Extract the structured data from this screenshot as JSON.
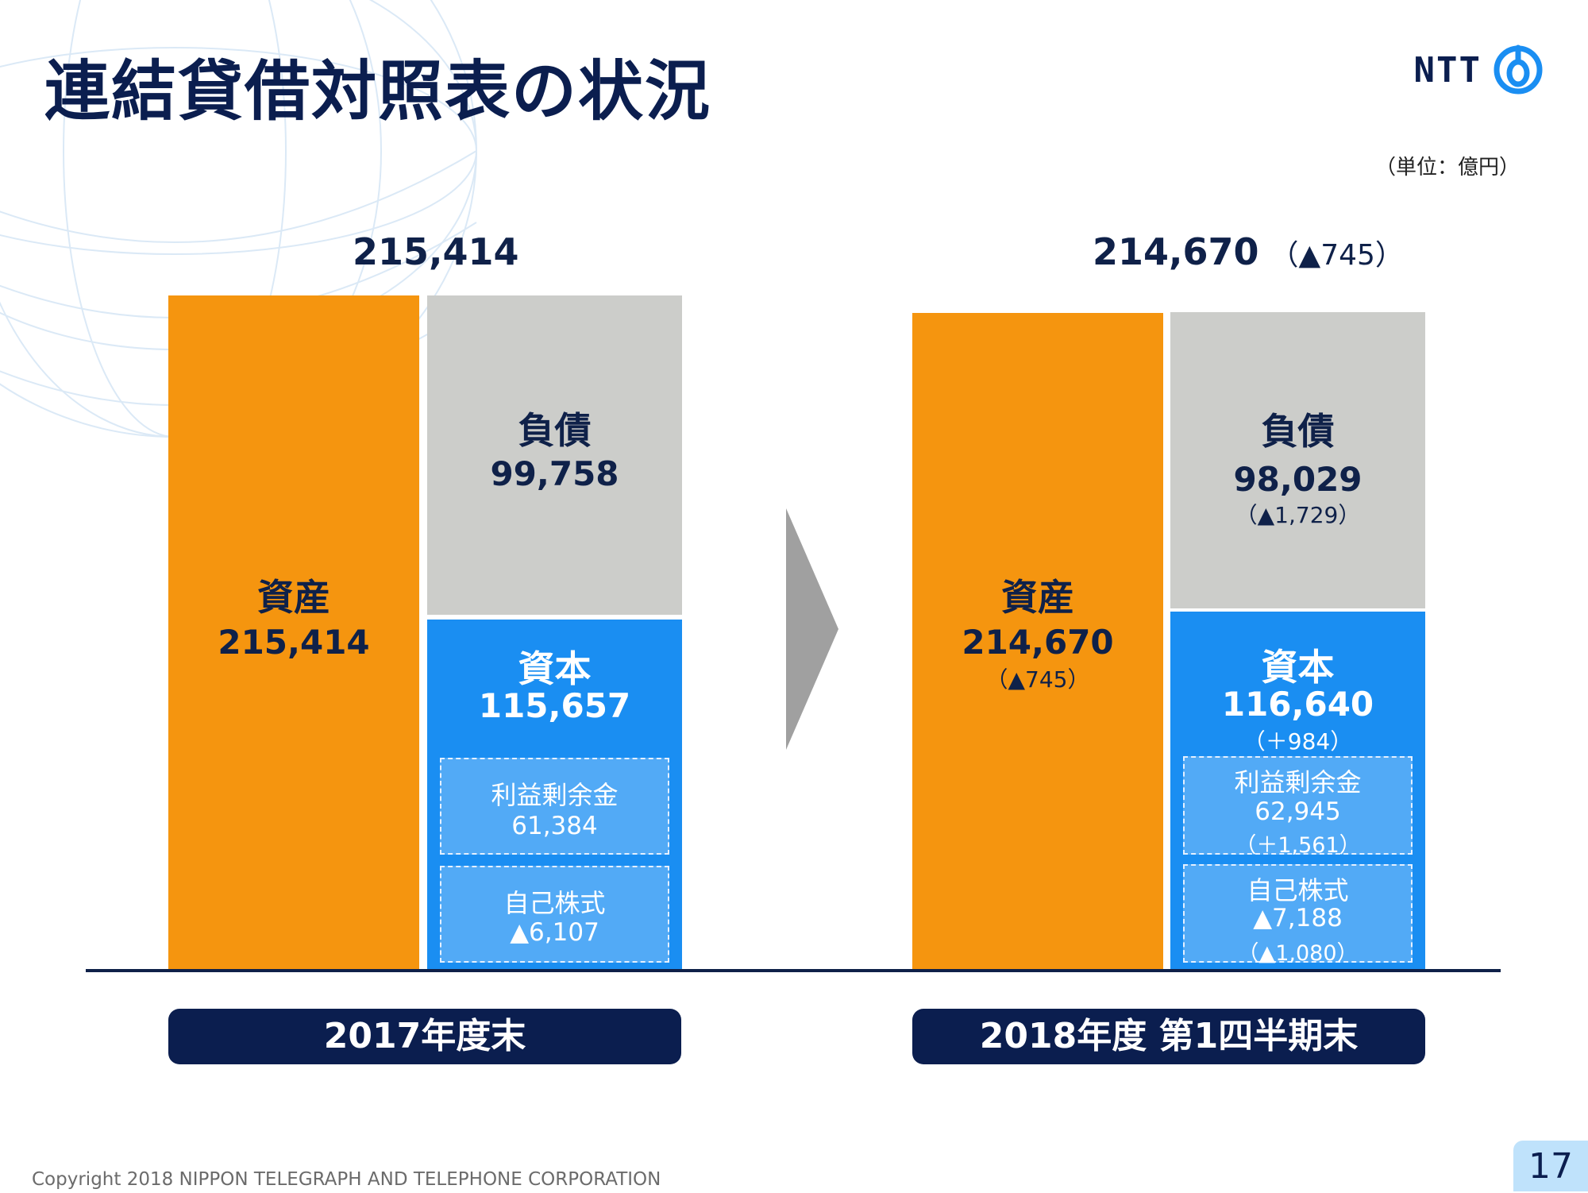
{
  "title": "連結貸借対照表の状況",
  "logo_text": "NTT",
  "unit_note": "（単位：億円）",
  "chart_data": {
    "type": "bar",
    "stacked": true,
    "unit": "億円",
    "categories": [
      "2017年度末",
      "2018年度 第1四半期末"
    ],
    "periods": [
      {
        "label": "2017年度末",
        "total": "215,414",
        "total_change": "",
        "assets": {
          "name": "資産",
          "value": 215414,
          "display": "215,414",
          "change": ""
        },
        "liabilities": {
          "name": "負債",
          "value": 99758,
          "display": "99,758",
          "change": ""
        },
        "equity": {
          "name": "資本",
          "value": 115657,
          "display": "115,657",
          "change": "",
          "components": [
            {
              "name": "利益剰余金",
              "display": "61,384",
              "change": ""
            },
            {
              "name": "自己株式",
              "display": "▲6,107",
              "change": ""
            }
          ]
        }
      },
      {
        "label": "2018年度 第1四半期末",
        "total": "214,670",
        "total_change": "（▲745）",
        "assets": {
          "name": "資産",
          "value": 214670,
          "display": "214,670",
          "change": "（▲745）"
        },
        "liabilities": {
          "name": "負債",
          "value": 98029,
          "display": "98,029",
          "change": "（▲1,729）"
        },
        "equity": {
          "name": "資本",
          "value": 116640,
          "display": "116,640",
          "change": "（＋984）",
          "components": [
            {
              "name": "利益剰余金",
              "display": "62,945",
              "change": "（＋1,561）"
            },
            {
              "name": "自己株式",
              "display": "▲7,188",
              "change": "（▲1,080）"
            }
          ]
        }
      }
    ]
  },
  "footer": {
    "copyright": "Copyright 2018 NIPPON TELEGRAPH AND TELEPHONE CORPORATION",
    "page_number": "17"
  }
}
